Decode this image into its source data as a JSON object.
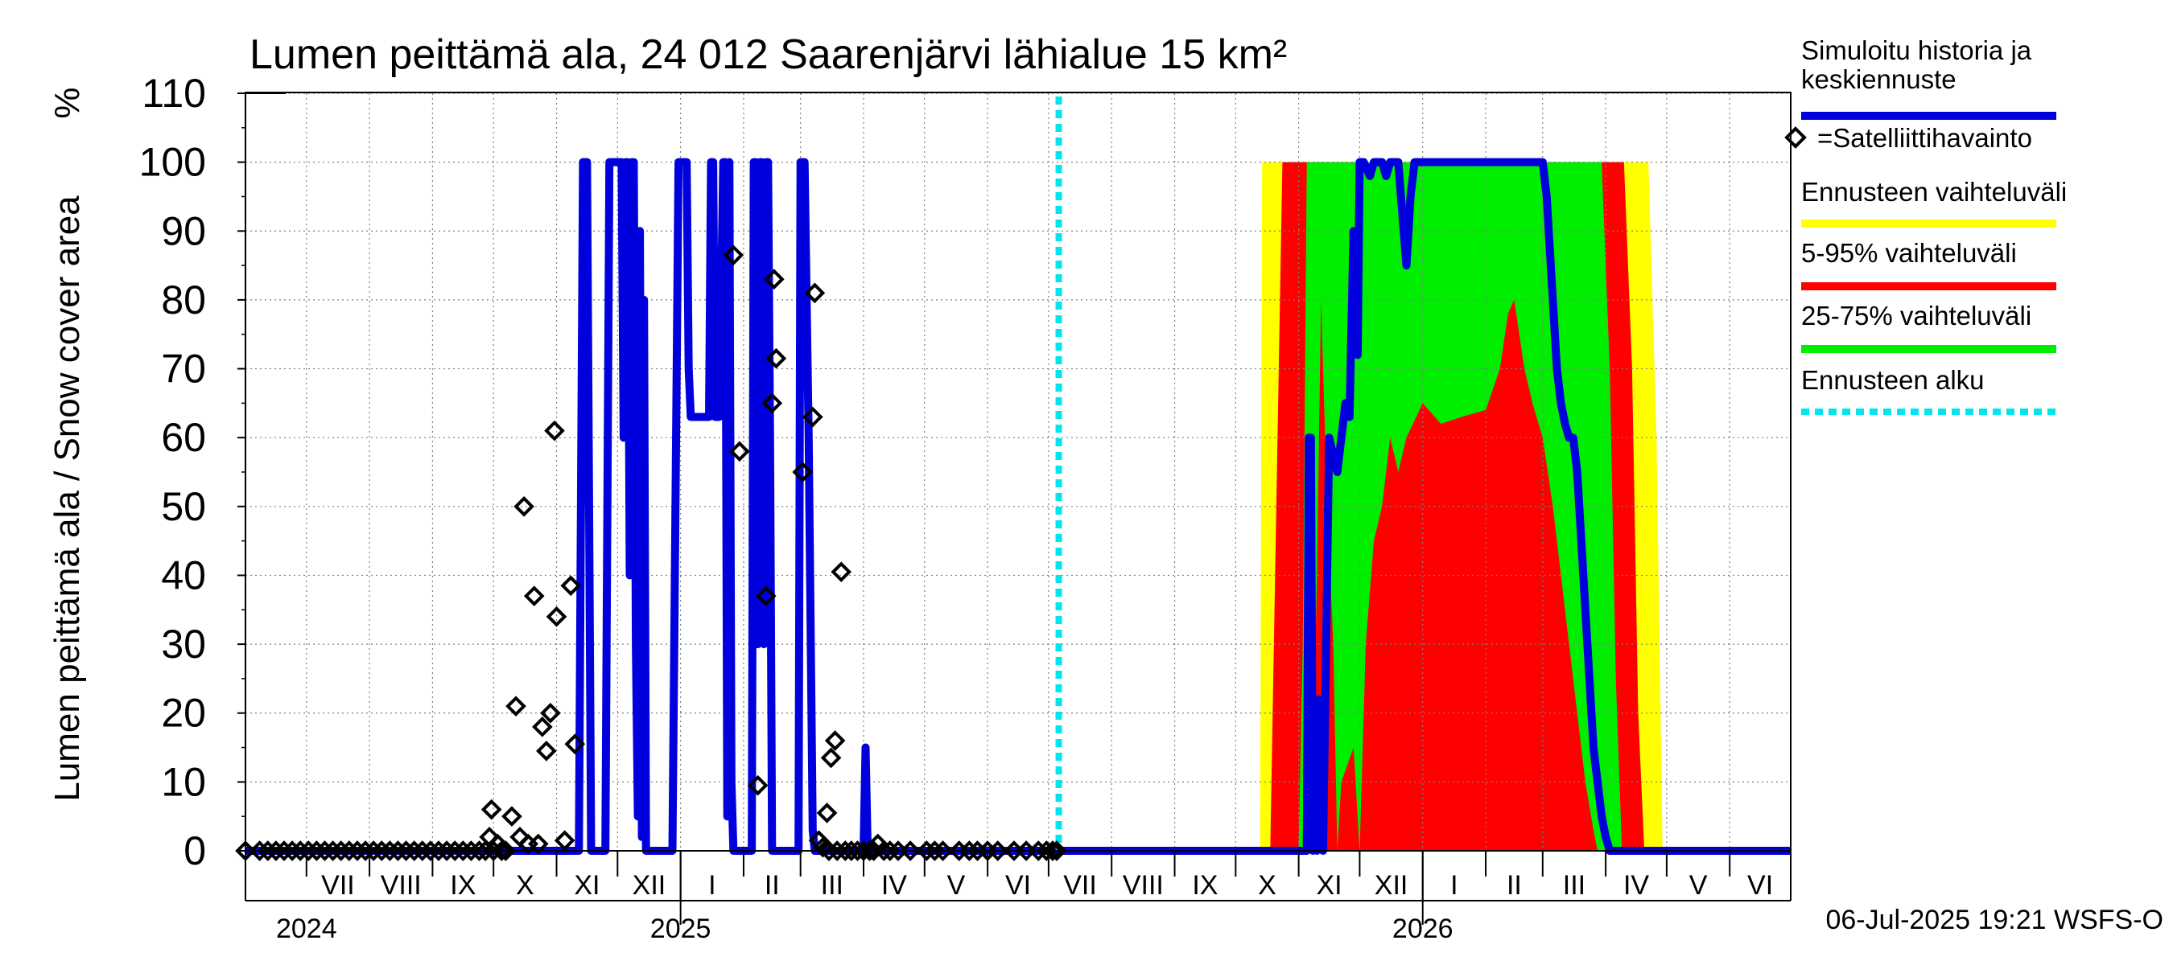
{
  "chart_data": {
    "type": "area",
    "title": "Lumen peittämä ala, 24 012 Saarenjärvi lähialue 15 km²",
    "ylabel": "Lumen peittämä ala / Snow cover area",
    "yunit": "%",
    "ylim": [
      0,
      110
    ],
    "yticks": [
      0,
      10,
      20,
      30,
      40,
      50,
      60,
      70,
      80,
      90,
      100,
      110
    ],
    "xlim": [
      "2024-06-01",
      "2026-07-01"
    ],
    "months": [
      {
        "label": "VII",
        "start": "2024-07-01"
      },
      {
        "label": "VIII",
        "start": "2024-08-01"
      },
      {
        "label": "IX",
        "start": "2024-09-01"
      },
      {
        "label": "X",
        "start": "2024-10-01"
      },
      {
        "label": "XI",
        "start": "2024-11-01"
      },
      {
        "label": "XII",
        "start": "2024-12-01"
      },
      {
        "label": "I",
        "start": "2025-01-01"
      },
      {
        "label": "II",
        "start": "2025-02-01"
      },
      {
        "label": "III",
        "start": "2025-03-01"
      },
      {
        "label": "IV",
        "start": "2025-04-01"
      },
      {
        "label": "V",
        "start": "2025-05-01"
      },
      {
        "label": "VI",
        "start": "2025-06-01"
      },
      {
        "label": "VII",
        "start": "2025-07-01"
      },
      {
        "label": "VIII",
        "start": "2025-08-01"
      },
      {
        "label": "IX",
        "start": "2025-09-01"
      },
      {
        "label": "X",
        "start": "2025-10-01"
      },
      {
        "label": "XI",
        "start": "2025-11-01"
      },
      {
        "label": "XII",
        "start": "2025-12-01"
      },
      {
        "label": "I",
        "start": "2026-01-01"
      },
      {
        "label": "II",
        "start": "2026-02-01"
      },
      {
        "label": "III",
        "start": "2026-03-01"
      },
      {
        "label": "IV",
        "start": "2026-04-01"
      },
      {
        "label": "V",
        "start": "2026-05-01"
      },
      {
        "label": "VI",
        "start": "2026-06-01"
      }
    ],
    "years": [
      {
        "label": "2024",
        "start": "2024-07-01"
      },
      {
        "label": "2025",
        "start": "2025-01-01"
      },
      {
        "label": "2026",
        "start": "2026-01-01"
      }
    ],
    "forecast_start": "2025-07-06",
    "grid": true,
    "legend_position": "right",
    "legend": [
      {
        "label_lines": [
          "Simuloitu historia ja",
          "keskiennuste"
        ],
        "color": "#0000dd",
        "style": "line"
      },
      {
        "label_lines": [
          "=Satelliittihavainto"
        ],
        "color": "#000000",
        "style": "diamond"
      },
      {
        "label_lines": [
          "Ennusteen vaihteluväli"
        ],
        "color": "#ffff00",
        "style": "line"
      },
      {
        "label_lines": [
          "5-95% vaihteluväli"
        ],
        "color": "#ff0000",
        "style": "line"
      },
      {
        "label_lines": [
          "25-75% vaihteluväli"
        ],
        "color": "#00ee00",
        "style": "line"
      },
      {
        "label_lines": [
          "Ennusteen alku"
        ],
        "color": "#00e5ee",
        "style": "dashed"
      }
    ],
    "footer": "06-Jul-2025 19:21 WSFS-O",
    "colors": {
      "sim": "#0000dd",
      "range": "#ffff00",
      "p5_95": "#ff0000",
      "p25_75": "#00ee00",
      "forecast_start": "#00e5ee",
      "obs": "#000000"
    },
    "series": [
      {
        "key": "sim",
        "points": [
          [
            "2024-06-01",
            0
          ],
          [
            "2024-11-12",
            0
          ],
          [
            "2024-11-14",
            100
          ],
          [
            "2024-11-16",
            100
          ],
          [
            "2024-11-18",
            0
          ],
          [
            "2024-11-25",
            0
          ],
          [
            "2024-11-27",
            100
          ],
          [
            "2024-12-03",
            100
          ],
          [
            "2024-12-04",
            60
          ],
          [
            "2024-12-05",
            100
          ],
          [
            "2024-12-06",
            100
          ],
          [
            "2024-12-07",
            40
          ],
          [
            "2024-12-08",
            100
          ],
          [
            "2024-12-09",
            100
          ],
          [
            "2024-12-10",
            30
          ],
          [
            "2024-12-11",
            5
          ],
          [
            "2024-12-12",
            90
          ],
          [
            "2024-12-13",
            2
          ],
          [
            "2024-12-14",
            80
          ],
          [
            "2024-12-15",
            0
          ],
          [
            "2024-12-28",
            0
          ],
          [
            "2024-12-31",
            100
          ],
          [
            "2025-01-04",
            100
          ],
          [
            "2025-01-05",
            70
          ],
          [
            "2025-01-06",
            63
          ],
          [
            "2025-01-15",
            63
          ],
          [
            "2025-01-16",
            100
          ],
          [
            "2025-01-17",
            100
          ],
          [
            "2025-01-18",
            63
          ],
          [
            "2025-01-20",
            63
          ],
          [
            "2025-01-22",
            100
          ],
          [
            "2025-01-23",
            100
          ],
          [
            "2025-01-24",
            5
          ],
          [
            "2025-01-25",
            100
          ],
          [
            "2025-01-26",
            10
          ],
          [
            "2025-01-27",
            0
          ],
          [
            "2025-02-05",
            0
          ],
          [
            "2025-02-06",
            100
          ],
          [
            "2025-02-07",
            100
          ],
          [
            "2025-02-08",
            30
          ],
          [
            "2025-02-09",
            100
          ],
          [
            "2025-02-10",
            100
          ],
          [
            "2025-02-11",
            30
          ],
          [
            "2025-02-12",
            100
          ],
          [
            "2025-02-13",
            100
          ],
          [
            "2025-02-14",
            60
          ],
          [
            "2025-02-15",
            0
          ],
          [
            "2025-02-28",
            0
          ],
          [
            "2025-03-01",
            100
          ],
          [
            "2025-03-03",
            100
          ],
          [
            "2025-03-05",
            60
          ],
          [
            "2025-03-07",
            3
          ],
          [
            "2025-03-08",
            0
          ],
          [
            "2025-04-01",
            0
          ],
          [
            "2025-04-02",
            15
          ],
          [
            "2025-04-03",
            0
          ],
          [
            "2025-10-30",
            0
          ],
          [
            "2025-11-03",
            0
          ],
          [
            "2025-11-05",
            0
          ],
          [
            "2025-11-06",
            60
          ],
          [
            "2025-11-07",
            60
          ],
          [
            "2025-11-08",
            0
          ],
          [
            "2025-11-09",
            20
          ],
          [
            "2025-11-10",
            0
          ],
          [
            "2025-11-11",
            22
          ],
          [
            "2025-11-13",
            0
          ],
          [
            "2025-11-16",
            60
          ],
          [
            "2025-11-20",
            55
          ],
          [
            "2025-11-24",
            65
          ],
          [
            "2025-11-26",
            63
          ],
          [
            "2025-11-28",
            90
          ],
          [
            "2025-11-30",
            72
          ],
          [
            "2025-12-01",
            100
          ],
          [
            "2025-12-03",
            100
          ],
          [
            "2025-12-06",
            98
          ],
          [
            "2025-12-08",
            100
          ],
          [
            "2025-12-12",
            100
          ],
          [
            "2025-12-14",
            98
          ],
          [
            "2025-12-16",
            100
          ],
          [
            "2025-12-20",
            100
          ],
          [
            "2025-12-24",
            85
          ],
          [
            "2025-12-26",
            95
          ],
          [
            "2025-12-28",
            100
          ],
          [
            "2026-01-01",
            100
          ],
          [
            "2026-02-01",
            100
          ],
          [
            "2026-03-01",
            100
          ],
          [
            "2026-03-03",
            95
          ],
          [
            "2026-03-06",
            80
          ],
          [
            "2026-03-08",
            70
          ],
          [
            "2026-03-10",
            65
          ],
          [
            "2026-03-12",
            62
          ],
          [
            "2026-03-14",
            60
          ],
          [
            "2026-03-16",
            60
          ],
          [
            "2026-03-18",
            55
          ],
          [
            "2026-03-20",
            45
          ],
          [
            "2026-03-22",
            35
          ],
          [
            "2026-03-24",
            25
          ],
          [
            "2026-03-26",
            15
          ],
          [
            "2026-03-28",
            10
          ],
          [
            "2026-03-30",
            5
          ],
          [
            "2026-04-01",
            2
          ],
          [
            "2026-04-03",
            0
          ],
          [
            "2026-07-01",
            0
          ]
        ]
      },
      {
        "key": "range",
        "upper": [
          [
            "2025-10-13",
            0
          ],
          [
            "2025-10-14",
            100
          ],
          [
            "2026-04-22",
            100
          ],
          [
            "2026-04-26",
            60
          ],
          [
            "2026-04-29",
            0
          ]
        ],
        "lower": [
          [
            "2025-10-13",
            0
          ],
          [
            "2026-04-29",
            0
          ]
        ]
      },
      {
        "key": "p5_95",
        "upper": [
          [
            "2025-10-18",
            0
          ],
          [
            "2025-10-24",
            100
          ],
          [
            "2026-04-10",
            100
          ],
          [
            "2026-04-14",
            70
          ],
          [
            "2026-04-17",
            20
          ],
          [
            "2026-04-20",
            0
          ]
        ],
        "lower": [
          [
            "2025-10-18",
            0
          ],
          [
            "2026-04-20",
            0
          ]
        ]
      },
      {
        "key": "p25_75",
        "upper": [
          [
            "2025-11-01",
            0
          ],
          [
            "2025-11-03",
            30
          ],
          [
            "2025-11-05",
            100
          ],
          [
            "2026-03-30",
            100
          ],
          [
            "2026-04-03",
            70
          ],
          [
            "2026-04-06",
            25
          ],
          [
            "2026-04-09",
            0
          ]
        ],
        "lower": [
          [
            "2025-11-01",
            0
          ],
          [
            "2025-11-07",
            0
          ],
          [
            "2025-11-10",
            40
          ],
          [
            "2025-11-12",
            80
          ],
          [
            "2025-11-15",
            50
          ],
          [
            "2025-11-18",
            30
          ],
          [
            "2025-11-20",
            0
          ],
          [
            "2025-11-22",
            10
          ],
          [
            "2025-11-28",
            15
          ],
          [
            "2025-12-01",
            0
          ],
          [
            "2025-12-04",
            30
          ],
          [
            "2025-12-08",
            45
          ],
          [
            "2025-12-12",
            50
          ],
          [
            "2025-12-16",
            60
          ],
          [
            "2025-12-20",
            55
          ],
          [
            "2025-12-24",
            60
          ],
          [
            "2026-01-01",
            65
          ],
          [
            "2026-01-10",
            62
          ],
          [
            "2026-01-20",
            63
          ],
          [
            "2026-02-01",
            64
          ],
          [
            "2026-02-08",
            70
          ],
          [
            "2026-02-12",
            78
          ],
          [
            "2026-02-15",
            80
          ],
          [
            "2026-02-20",
            70
          ],
          [
            "2026-02-24",
            65
          ],
          [
            "2026-03-01",
            60
          ],
          [
            "2026-03-06",
            50
          ],
          [
            "2026-03-10",
            40
          ],
          [
            "2026-03-14",
            30
          ],
          [
            "2026-03-18",
            20
          ],
          [
            "2026-03-22",
            10
          ],
          [
            "2026-03-26",
            3
          ],
          [
            "2026-03-28",
            0
          ],
          [
            "2026-04-09",
            0
          ]
        ]
      }
    ],
    "observations": [
      [
        "2024-06-01",
        0
      ],
      [
        "2024-06-08",
        0
      ],
      [
        "2024-06-12",
        0
      ],
      [
        "2024-06-16",
        0
      ],
      [
        "2024-06-20",
        0
      ],
      [
        "2024-06-24",
        0
      ],
      [
        "2024-06-28",
        0
      ],
      [
        "2024-07-02",
        0
      ],
      [
        "2024-07-06",
        0
      ],
      [
        "2024-07-10",
        0
      ],
      [
        "2024-07-14",
        0
      ],
      [
        "2024-07-18",
        0
      ],
      [
        "2024-07-22",
        0
      ],
      [
        "2024-07-26",
        0
      ],
      [
        "2024-07-30",
        0
      ],
      [
        "2024-08-03",
        0
      ],
      [
        "2024-08-07",
        0
      ],
      [
        "2024-08-11",
        0
      ],
      [
        "2024-08-15",
        0
      ],
      [
        "2024-08-19",
        0
      ],
      [
        "2024-08-23",
        0
      ],
      [
        "2024-08-27",
        0
      ],
      [
        "2024-08-31",
        0
      ],
      [
        "2024-09-04",
        0
      ],
      [
        "2024-09-08",
        0
      ],
      [
        "2024-09-12",
        0
      ],
      [
        "2024-09-16",
        0
      ],
      [
        "2024-09-20",
        0
      ],
      [
        "2024-09-24",
        0
      ],
      [
        "2024-09-27",
        0
      ],
      [
        "2024-09-29",
        2
      ],
      [
        "2024-09-30",
        6
      ],
      [
        "2024-10-01",
        0
      ],
      [
        "2024-10-03",
        1
      ],
      [
        "2024-10-05",
        0
      ],
      [
        "2024-10-07",
        0
      ],
      [
        "2024-10-10",
        5
      ],
      [
        "2024-10-12",
        21
      ],
      [
        "2024-10-14",
        2
      ],
      [
        "2024-10-16",
        50
      ],
      [
        "2024-10-18",
        1
      ],
      [
        "2024-10-21",
        37
      ],
      [
        "2024-10-23",
        1
      ],
      [
        "2024-10-25",
        18
      ],
      [
        "2024-10-27",
        14.5
      ],
      [
        "2024-10-29",
        20
      ],
      [
        "2024-10-31",
        61
      ],
      [
        "2024-11-01",
        34
      ],
      [
        "2024-11-05",
        1.5
      ],
      [
        "2024-11-08",
        38.5
      ],
      [
        "2024-11-10",
        15.5
      ],
      [
        "2025-01-27",
        86.5
      ],
      [
        "2025-01-30",
        58
      ],
      [
        "2025-02-08",
        9.5
      ],
      [
        "2025-02-12",
        37
      ],
      [
        "2025-02-15",
        65
      ],
      [
        "2025-02-16",
        83
      ],
      [
        "2025-02-17",
        71.5
      ],
      [
        "2025-03-02",
        55
      ],
      [
        "2025-03-07",
        63
      ],
      [
        "2025-03-08",
        81
      ],
      [
        "2025-03-10",
        1.5
      ],
      [
        "2025-03-12",
        0.5
      ],
      [
        "2025-03-14",
        5.5
      ],
      [
        "2025-03-15",
        0
      ],
      [
        "2025-03-16",
        13.5
      ],
      [
        "2025-03-18",
        16
      ],
      [
        "2025-03-19",
        0
      ],
      [
        "2025-03-21",
        40.5
      ],
      [
        "2025-03-23",
        0
      ],
      [
        "2025-03-26",
        0
      ],
      [
        "2025-03-29",
        0
      ],
      [
        "2025-04-01",
        0
      ],
      [
        "2025-04-04",
        0
      ],
      [
        "2025-04-06",
        0
      ],
      [
        "2025-04-08",
        1
      ],
      [
        "2025-04-11",
        0
      ],
      [
        "2025-04-14",
        0
      ],
      [
        "2025-04-18",
        0
      ],
      [
        "2025-04-24",
        0
      ],
      [
        "2025-05-02",
        0
      ],
      [
        "2025-05-06",
        0
      ],
      [
        "2025-05-10",
        0
      ],
      [
        "2025-05-18",
        0
      ],
      [
        "2025-05-23",
        0
      ],
      [
        "2025-05-27",
        0
      ],
      [
        "2025-06-01",
        0
      ],
      [
        "2025-06-06",
        0
      ],
      [
        "2025-06-14",
        0
      ],
      [
        "2025-06-20",
        0
      ],
      [
        "2025-06-26",
        0
      ],
      [
        "2025-06-30",
        0
      ],
      [
        "2025-07-03",
        0
      ],
      [
        "2025-07-05",
        0
      ]
    ]
  }
}
